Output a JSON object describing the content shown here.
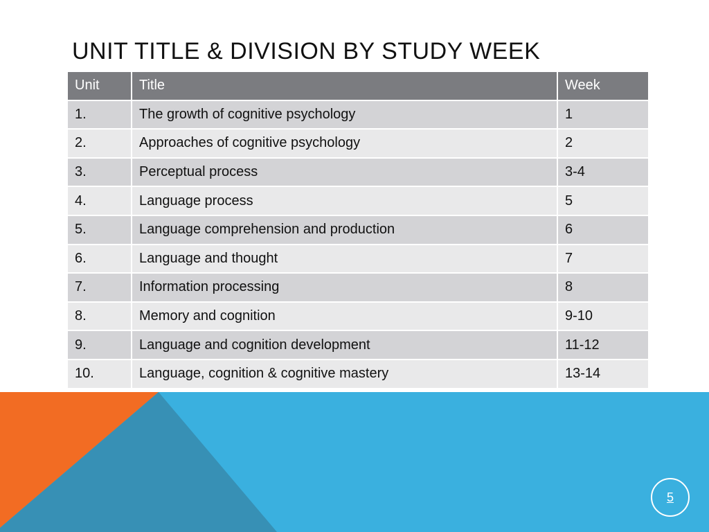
{
  "slide": {
    "title": "UNIT TITLE & DIVISION BY STUDY WEEK",
    "page_number": "5"
  },
  "table": {
    "headers": [
      "Unit",
      "Title",
      "Week"
    ],
    "rows": [
      {
        "unit": "1.",
        "title": "The growth of cognitive psychology",
        "week": "1"
      },
      {
        "unit": "2.",
        "title": "Approaches of cognitive psychology",
        "week": "2"
      },
      {
        "unit": "3.",
        "title": "Perceptual process",
        "week": "3-4"
      },
      {
        "unit": "4.",
        "title": "Language process",
        "week": "5"
      },
      {
        "unit": "5.",
        "title": "Language comprehension and production",
        "week": "6"
      },
      {
        "unit": "6.",
        "title": "Language and thought",
        "week": "7"
      },
      {
        "unit": "7.",
        "title": "Information processing",
        "week": "8"
      },
      {
        "unit": "8.",
        "title": "Memory and cognition",
        "week": "9-10"
      },
      {
        "unit": "9.",
        "title": "Language and cognition development",
        "week": "11-12"
      },
      {
        "unit": "10.",
        "title": "Language, cognition & cognitive mastery",
        "week": "13-14"
      }
    ]
  },
  "colors": {
    "header_bg": "#7b7c80",
    "row_odd": "#d3d3d6",
    "row_even": "#e9e9ea",
    "accent_orange": "#f26c23",
    "accent_blue": "#3ab0df",
    "accent_teal": "#3790b5"
  }
}
